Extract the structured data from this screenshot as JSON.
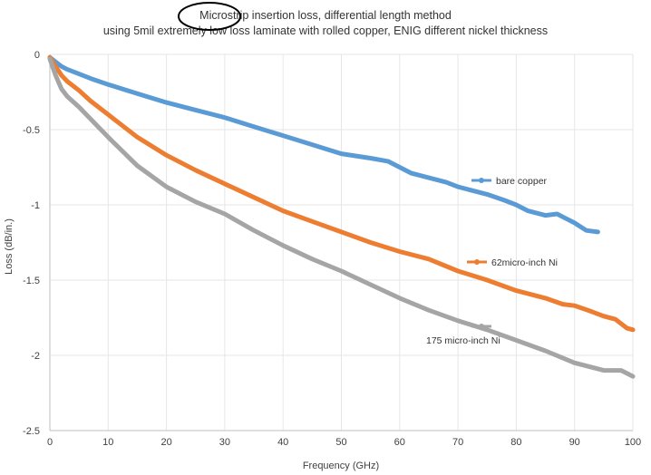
{
  "chart_data": {
    "type": "line",
    "title": "Microstrip insertion loss, differential length method",
    "subtitle": "using 5mil extremely low loss laminate with rolled copper, ENIG different nickel thickness",
    "xlabel": "Frequency (GHz)",
    "ylabel": "Loss (dB/in.)",
    "xlim": [
      0,
      100
    ],
    "ylim": [
      -2.5,
      0
    ],
    "xticks": [
      "0",
      "10",
      "20",
      "30",
      "40",
      "50",
      "60",
      "70",
      "80",
      "90",
      "100"
    ],
    "yticks": [
      "0",
      "-0.5",
      "-1",
      "-1.5",
      "-2",
      "-2.5"
    ],
    "grid": true,
    "series": [
      {
        "name": "bare copper",
        "color": "#5b9bd5",
        "x": [
          0,
          1,
          2,
          3,
          5,
          7,
          10,
          15,
          20,
          25,
          30,
          35,
          40,
          45,
          50,
          55,
          58,
          60,
          62,
          65,
          68,
          70,
          72,
          75,
          78,
          80,
          82,
          85,
          87,
          88,
          90,
          92,
          94
        ],
        "y": [
          -0.02,
          -0.05,
          -0.08,
          -0.1,
          -0.13,
          -0.16,
          -0.2,
          -0.26,
          -0.32,
          -0.37,
          -0.42,
          -0.48,
          -0.54,
          -0.6,
          -0.66,
          -0.69,
          -0.71,
          -0.75,
          -0.79,
          -0.82,
          -0.85,
          -0.88,
          -0.9,
          -0.93,
          -0.97,
          -1.0,
          -1.04,
          -1.07,
          -1.06,
          -1.08,
          -1.12,
          -1.17,
          -1.18
        ]
      },
      {
        "name": "62micro-inch Ni",
        "color": "#ed7d31",
        "x": [
          0,
          1,
          2,
          3,
          5,
          7,
          10,
          15,
          20,
          25,
          30,
          35,
          40,
          45,
          50,
          55,
          60,
          65,
          70,
          75,
          80,
          85,
          88,
          90,
          93,
          95,
          97,
          99,
          100
        ],
        "y": [
          -0.02,
          -0.08,
          -0.14,
          -0.18,
          -0.24,
          -0.31,
          -0.4,
          -0.55,
          -0.67,
          -0.77,
          -0.86,
          -0.95,
          -1.04,
          -1.11,
          -1.18,
          -1.25,
          -1.31,
          -1.36,
          -1.44,
          -1.5,
          -1.57,
          -1.62,
          -1.66,
          -1.67,
          -1.71,
          -1.74,
          -1.76,
          -1.82,
          -1.83
        ]
      },
      {
        "name": "175 micro-inch Ni",
        "color": "#a5a5a5",
        "x": [
          0,
          1,
          2,
          3,
          5,
          7,
          10,
          15,
          20,
          25,
          30,
          35,
          40,
          45,
          50,
          55,
          60,
          65,
          70,
          75,
          80,
          85,
          90,
          95,
          98,
          100
        ],
        "y": [
          -0.03,
          -0.14,
          -0.23,
          -0.28,
          -0.35,
          -0.43,
          -0.55,
          -0.74,
          -0.88,
          -0.98,
          -1.06,
          -1.17,
          -1.27,
          -1.36,
          -1.44,
          -1.53,
          -1.62,
          -1.7,
          -1.77,
          -1.83,
          -1.9,
          -1.97,
          -2.05,
          -2.1,
          -2.1,
          -2.14
        ]
      }
    ]
  }
}
